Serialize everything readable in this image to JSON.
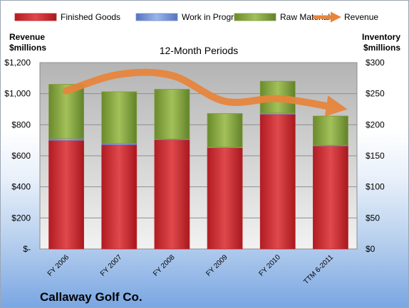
{
  "chart_data": {
    "type": "bar",
    "stacked": true,
    "title": "12-Month Periods",
    "company": "Callaway Golf Co.",
    "categories": [
      "FY 2006",
      "FY 2007",
      "FY 2008",
      "FY 2009",
      "FY 2010",
      "TTM 6-2011"
    ],
    "left_axis": {
      "label_line1": "Revenue",
      "label_line2": "$millions",
      "ylim": [
        0,
        1200
      ],
      "ticks": [
        "$-",
        "$200",
        "$400",
        "$600",
        "$800",
        "$1,000",
        "$1,200"
      ],
      "tick_values": [
        0,
        200,
        400,
        600,
        800,
        1000,
        1200
      ]
    },
    "right_axis": {
      "label_line1": "Inventory",
      "label_line2": "$millions",
      "ylim": [
        0,
        300
      ],
      "ticks": [
        "$0",
        "$50",
        "$100",
        "$150",
        "$200",
        "$250",
        "$300"
      ],
      "tick_values": [
        0,
        50,
        100,
        150,
        200,
        250,
        300
      ]
    },
    "series": [
      {
        "name": "Finished Goods",
        "axis": "right",
        "color": "#c0262c",
        "values": [
          175,
          168,
          176,
          163,
          217,
          166
        ]
      },
      {
        "name": "Work in Progress",
        "axis": "right",
        "color": "#6f8fd4",
        "values": [
          3,
          2,
          1,
          1,
          2,
          1
        ]
      },
      {
        "name": "Raw Materials",
        "axis": "right",
        "color": "#7e9c3a",
        "values": [
          87,
          83,
          80,
          54,
          51,
          47
        ]
      }
    ],
    "line_series": {
      "name": "Revenue",
      "axis": "left",
      "color": "#e8843a",
      "values": [
        1018,
        1124,
        1117,
        951,
        968,
        916
      ]
    },
    "grid": true,
    "legend": "top"
  }
}
